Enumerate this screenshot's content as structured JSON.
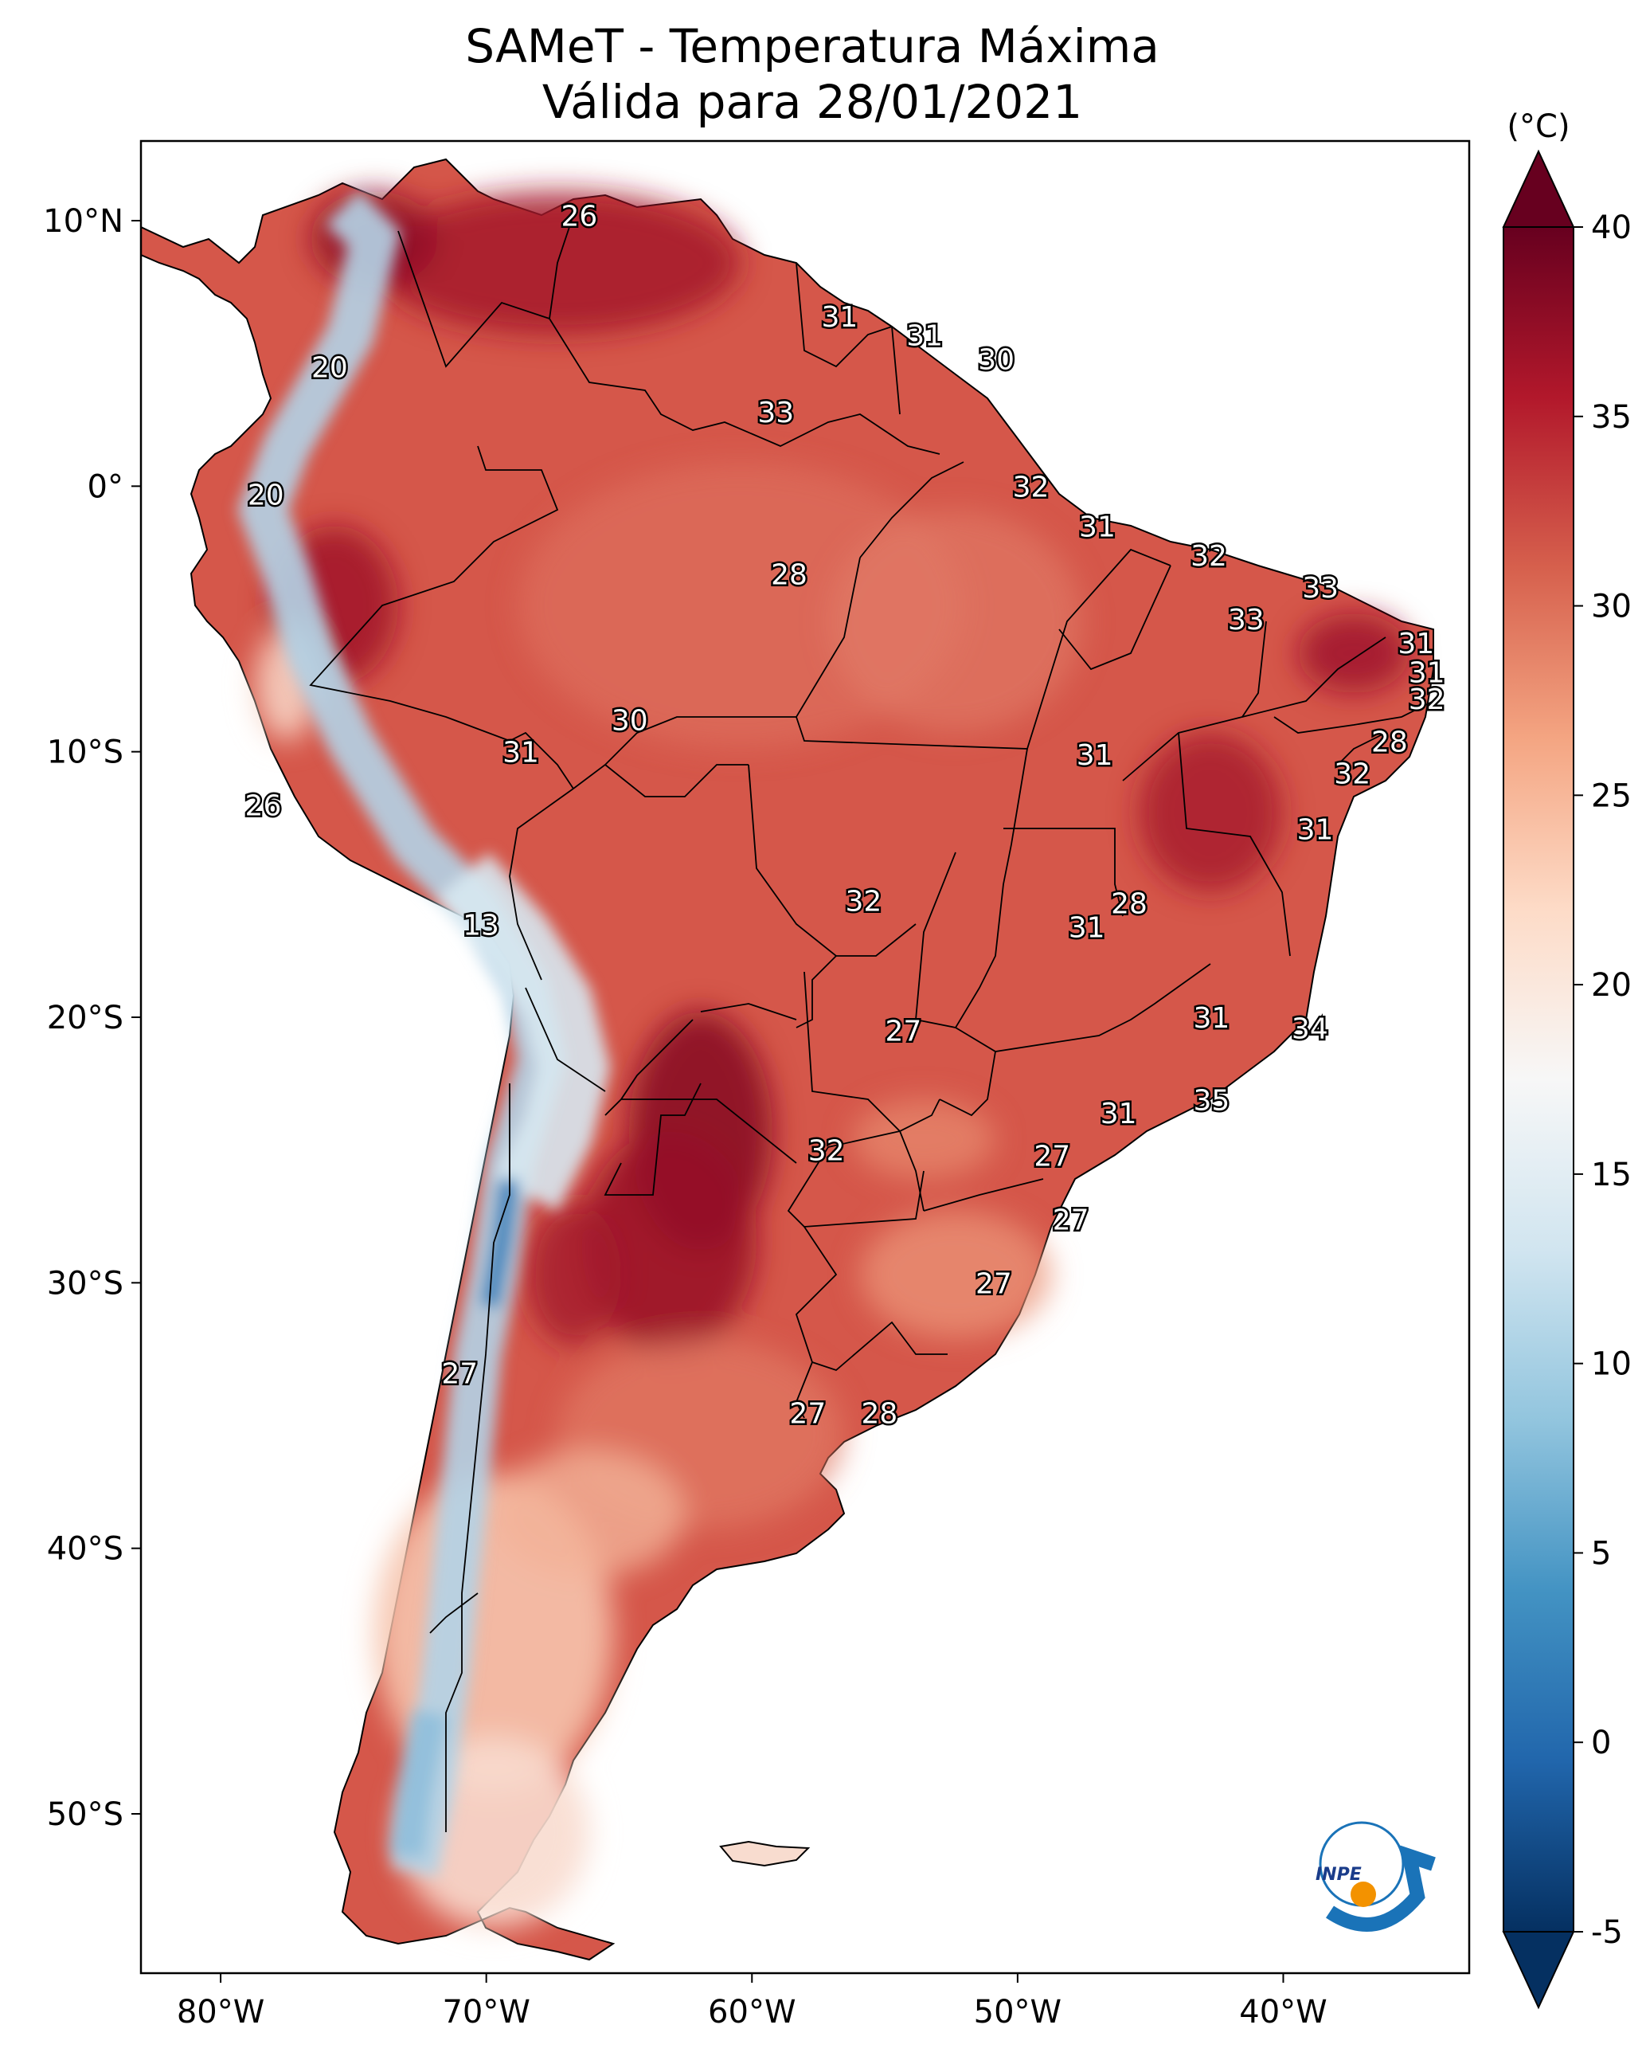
{
  "title": {
    "line1": "SAMeT - Temperatura Máxima",
    "line2": "Válida para 28/01/2021"
  },
  "map": {
    "lon_range": [
      -83,
      -33
    ],
    "lat_range": [
      -56,
      13
    ],
    "x_ticks": [
      {
        "lon": -80,
        "label": "80°W"
      },
      {
        "lon": -70,
        "label": "70°W"
      },
      {
        "lon": -60,
        "label": "60°W"
      },
      {
        "lon": -50,
        "label": "50°W"
      },
      {
        "lon": -40,
        "label": "40°W"
      }
    ],
    "y_ticks": [
      {
        "lat": 10,
        "label": "10°N"
      },
      {
        "lat": 0,
        "label": "0°"
      },
      {
        "lat": -10,
        "label": "10°S"
      },
      {
        "lat": -20,
        "label": "20°S"
      },
      {
        "lat": -30,
        "label": "30°S"
      },
      {
        "lat": -40,
        "label": "40°S"
      },
      {
        "lat": -50,
        "label": "50°S"
      }
    ],
    "station_labels": [
      {
        "lon": -66.5,
        "lat": 10.2,
        "value": "26"
      },
      {
        "lon": -56.7,
        "lat": 6.4,
        "value": "31"
      },
      {
        "lon": -53.5,
        "lat": 5.7,
        "value": "31"
      },
      {
        "lon": -50.8,
        "lat": 4.8,
        "value": "30"
      },
      {
        "lon": -59.1,
        "lat": 2.8,
        "value": "33"
      },
      {
        "lon": -75.9,
        "lat": 4.5,
        "value": "20"
      },
      {
        "lon": -78.3,
        "lat": -0.3,
        "value": "20"
      },
      {
        "lon": -49.5,
        "lat": 0.0,
        "value": "32"
      },
      {
        "lon": -47.0,
        "lat": -1.5,
        "value": "31"
      },
      {
        "lon": -58.6,
        "lat": -3.3,
        "value": "28"
      },
      {
        "lon": -42.8,
        "lat": -2.6,
        "value": "32"
      },
      {
        "lon": -38.6,
        "lat": -3.8,
        "value": "33"
      },
      {
        "lon": -41.4,
        "lat": -5.0,
        "value": "33"
      },
      {
        "lon": -35.0,
        "lat": -5.9,
        "value": "31"
      },
      {
        "lon": -34.6,
        "lat": -7.0,
        "value": "31"
      },
      {
        "lon": -34.6,
        "lat": -8.0,
        "value": "32"
      },
      {
        "lon": -36.0,
        "lat": -9.6,
        "value": "28"
      },
      {
        "lon": -37.4,
        "lat": -10.8,
        "value": "32"
      },
      {
        "lon": -64.6,
        "lat": -8.8,
        "value": "30"
      },
      {
        "lon": -68.7,
        "lat": -10.0,
        "value": "31"
      },
      {
        "lon": -47.1,
        "lat": -10.1,
        "value": "31"
      },
      {
        "lon": -78.4,
        "lat": -12.0,
        "value": "26"
      },
      {
        "lon": -38.8,
        "lat": -12.9,
        "value": "31"
      },
      {
        "lon": -70.2,
        "lat": -16.5,
        "value": "13"
      },
      {
        "lon": -55.8,
        "lat": -15.6,
        "value": "32"
      },
      {
        "lon": -45.8,
        "lat": -15.7,
        "value": "28"
      },
      {
        "lon": -47.4,
        "lat": -16.6,
        "value": "31"
      },
      {
        "lon": -42.7,
        "lat": -20.0,
        "value": "31"
      },
      {
        "lon": -39.0,
        "lat": -20.4,
        "value": "34"
      },
      {
        "lon": -54.3,
        "lat": -20.5,
        "value": "27"
      },
      {
        "lon": -42.7,
        "lat": -23.1,
        "value": "35"
      },
      {
        "lon": -46.2,
        "lat": -23.6,
        "value": "31"
      },
      {
        "lon": -57.2,
        "lat": -25.0,
        "value": "32"
      },
      {
        "lon": -48.7,
        "lat": -25.2,
        "value": "27"
      },
      {
        "lon": -48.0,
        "lat": -27.6,
        "value": "27"
      },
      {
        "lon": -50.9,
        "lat": -30.0,
        "value": "27"
      },
      {
        "lon": -71.0,
        "lat": -33.4,
        "value": "27"
      },
      {
        "lon": -57.9,
        "lat": -34.9,
        "value": "27"
      },
      {
        "lon": -55.2,
        "lat": -34.9,
        "value": "28"
      }
    ]
  },
  "colorbar": {
    "unit": "(°C)",
    "range": [
      -5,
      40
    ],
    "extend": "both",
    "ticks": [
      "-5",
      "0",
      "5",
      "10",
      "15",
      "20",
      "25",
      "30",
      "35",
      "40"
    ],
    "colors": [
      "#053061",
      "#2166ac",
      "#4393c3",
      "#92c5de",
      "#d1e5f0",
      "#f7f7f7",
      "#fddbc7",
      "#f4a582",
      "#d6604d",
      "#b2182b",
      "#67001f"
    ]
  },
  "logo": {
    "text": "INPE",
    "colors": {
      "arc": "#1a73b8",
      "dot": "#f39200"
    }
  }
}
